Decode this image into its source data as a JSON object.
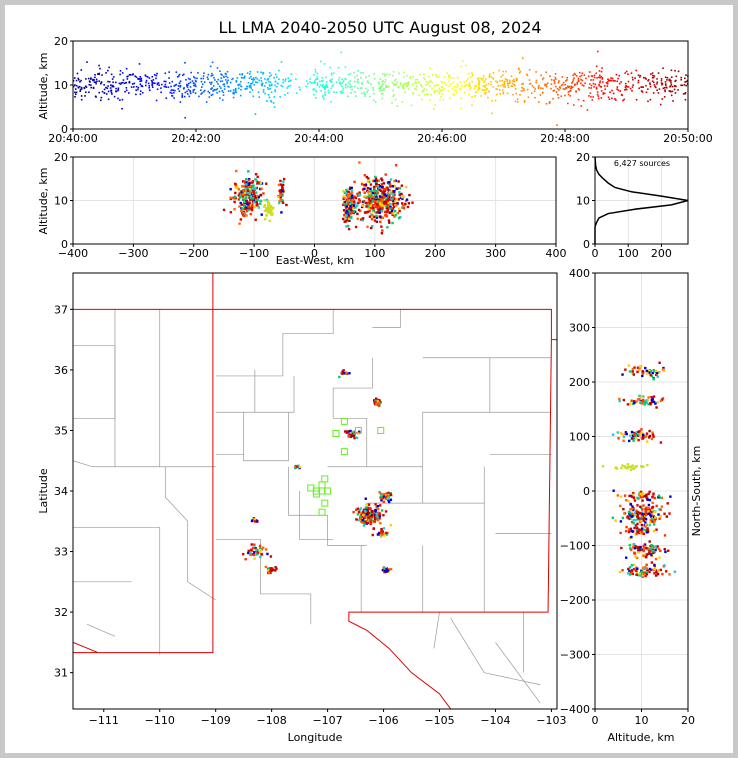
{
  "title": "LL LMA 2040-2050 UTC August 08, 2024",
  "source_count_label": "6,427 sources",
  "panels": {
    "time_height": {
      "ylabel": "Altitude, km",
      "x_ticks": [
        "20:40:00",
        "20:42:00",
        "20:44:00",
        "20:46:00",
        "20:48:00",
        "20:50:00"
      ],
      "y_ticks": [
        "0",
        "10",
        "20"
      ]
    },
    "ew_height": {
      "xlabel": "East-West, km",
      "ylabel": "Altitude, km",
      "x_ticks": [
        "−400",
        "−300",
        "−200",
        "−100",
        "0",
        "100",
        "200",
        "300",
        "400"
      ],
      "y_ticks": [
        "0",
        "10",
        "20"
      ]
    },
    "histogram": {
      "x_ticks": [
        "0",
        "100",
        "200"
      ],
      "y_ticks": [
        "0",
        "10",
        "20"
      ]
    },
    "plan": {
      "xlabel": "Longitude",
      "ylabel": "Latitude",
      "x_ticks": [
        "−111",
        "−110",
        "−109",
        "−108",
        "−107",
        "−106",
        "−105",
        "−104",
        "−103"
      ],
      "y_ticks": [
        "31",
        "32",
        "33",
        "34",
        "35",
        "36",
        "37"
      ]
    },
    "ns_height": {
      "xlabel": "Altitude, km",
      "ylabel": "North-South, km",
      "x_ticks": [
        "0",
        "10",
        "20"
      ],
      "y_ticks": [
        "−400",
        "−300",
        "−200",
        "−100",
        "0",
        "100",
        "200",
        "300",
        "400"
      ]
    }
  },
  "chart_data": [
    {
      "type": "scatter",
      "name": "time-height",
      "x_range": [
        "20:40:00",
        "20:50:00"
      ],
      "ylim": [
        0,
        20
      ],
      "color_by": "time",
      "clusters": [
        {
          "t_min": 0.0,
          "t_max": 10.0,
          "alt_center": 10,
          "alt_spread": 3
        }
      ]
    },
    {
      "type": "scatter",
      "name": "east-west vs altitude",
      "xlim": [
        -400,
        400
      ],
      "ylim": [
        0,
        20
      ],
      "clusters": [
        {
          "x_center": -110,
          "x_spread": 12,
          "alt_center": 11,
          "alt_spread": 3
        },
        {
          "x_center": -75,
          "x_spread": 4,
          "alt_center": 8,
          "alt_spread": 1.5
        },
        {
          "x_center": -55,
          "x_spread": 3,
          "alt_center": 12,
          "alt_spread": 2
        },
        {
          "x_center": 58,
          "x_spread": 6,
          "alt_center": 9,
          "alt_spread": 3
        },
        {
          "x_center": 110,
          "x_spread": 18,
          "alt_center": 10,
          "alt_spread": 3.5
        }
      ]
    },
    {
      "type": "line",
      "name": "altitude histogram",
      "xlim": [
        0,
        280
      ],
      "ylim": [
        0,
        20
      ],
      "altitude_km": [
        0,
        2,
        4,
        5,
        6,
        7,
        8,
        9,
        10,
        11,
        12,
        13,
        14,
        15,
        16,
        17,
        18,
        20
      ],
      "count": [
        0,
        0,
        0,
        5,
        12,
        40,
        120,
        230,
        280,
        200,
        110,
        60,
        40,
        25,
        12,
        5,
        2,
        0
      ]
    },
    {
      "type": "scatter",
      "name": "plan view",
      "xlim": [
        -111.55,
        -102.9
      ],
      "ylim": [
        30.4,
        37.6
      ],
      "clusters": [
        {
          "lon": -106.25,
          "lat": 33.6,
          "spread": 0.12,
          "n": 160
        },
        {
          "lon": -105.95,
          "lat": 33.9,
          "spread": 0.06,
          "n": 40
        },
        {
          "lon": -106.05,
          "lat": 33.3,
          "spread": 0.05,
          "n": 20
        },
        {
          "lon": -105.95,
          "lat": 32.7,
          "spread": 0.04,
          "n": 25
        },
        {
          "lon": -106.55,
          "lat": 34.95,
          "spread": 0.06,
          "n": 30
        },
        {
          "lon": -106.1,
          "lat": 35.45,
          "spread": 0.05,
          "n": 25
        },
        {
          "lon": -106.7,
          "lat": 35.95,
          "spread": 0.04,
          "n": 15
        },
        {
          "lon": -108.3,
          "lat": 33.0,
          "spread": 0.1,
          "n": 40
        },
        {
          "lon": -108.0,
          "lat": 32.7,
          "spread": 0.06,
          "n": 20
        },
        {
          "lon": -107.55,
          "lat": 34.4,
          "spread": 0.03,
          "n": 8
        },
        {
          "lon": -108.3,
          "lat": 33.5,
          "spread": 0.04,
          "n": 10
        }
      ],
      "stations": [
        [
          -107.2,
          34.0
        ],
        [
          -107.3,
          34.05
        ],
        [
          -107.1,
          34.0
        ],
        [
          -107.0,
          34.0
        ],
        [
          -107.1,
          34.1
        ],
        [
          -107.2,
          33.95
        ],
        [
          -107.05,
          33.8
        ],
        [
          -107.1,
          33.65
        ],
        [
          -107.05,
          34.2
        ],
        [
          -106.7,
          34.65
        ],
        [
          -106.7,
          35.15
        ],
        [
          -106.45,
          35.0
        ],
        [
          -106.05,
          35.0
        ],
        [
          -107.2,
          34.0
        ],
        [
          -106.85,
          34.95
        ]
      ]
    },
    {
      "type": "scatter",
      "name": "altitude vs north-south",
      "xlim": [
        0,
        20
      ],
      "ylim": [
        -400,
        400
      ],
      "clusters": [
        {
          "alt_center": 11,
          "ns_center": 220,
          "ns_spread": 8
        },
        {
          "alt_center": 10,
          "ns_center": 165,
          "ns_spread": 6
        },
        {
          "alt_center": 9,
          "ns_center": 100,
          "ns_spread": 8
        },
        {
          "alt_center": 8,
          "ns_center": 45,
          "ns_spread": 3
        },
        {
          "alt_center": 10,
          "ns_center": -10,
          "ns_spread": 6
        },
        {
          "alt_center": 10,
          "ns_center": -45,
          "ns_spread": 15
        },
        {
          "alt_center": 10,
          "ns_center": -75,
          "ns_spread": 8
        },
        {
          "alt_center": 11,
          "ns_center": -110,
          "ns_spread": 10
        },
        {
          "alt_center": 11,
          "ns_center": -145,
          "ns_spread": 8
        }
      ]
    }
  ]
}
